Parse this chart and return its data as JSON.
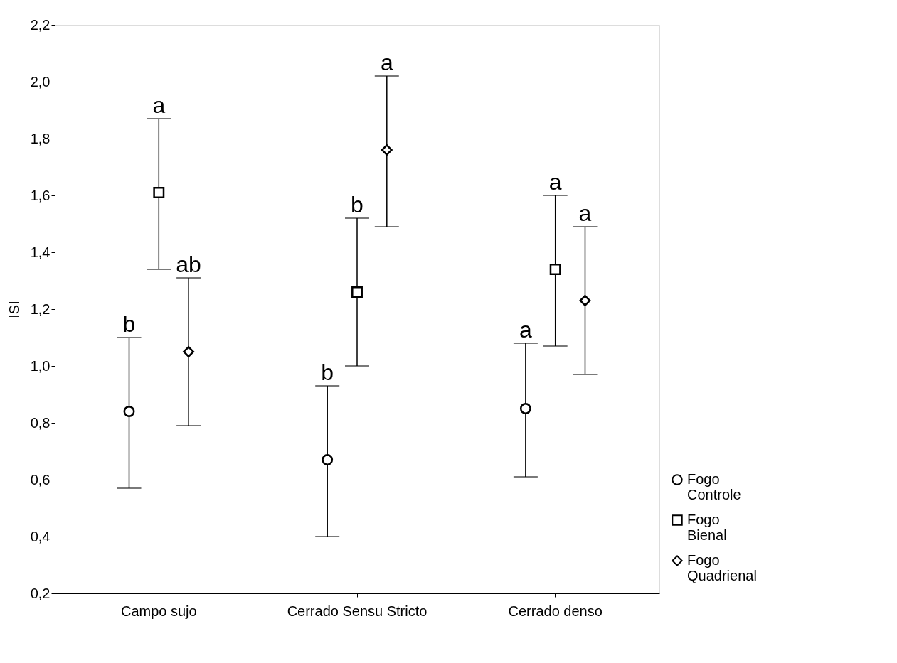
{
  "chart_data": {
    "type": "scatter",
    "ylabel": "ISI",
    "categories": [
      "Campo sujo",
      "Cerrado Sensu Stricto",
      "Cerrado denso"
    ],
    "series": [
      {
        "name": "Fogo Controle",
        "color": "#000000",
        "marker": "circle",
        "values": [
          0.84,
          0.67,
          0.85
        ],
        "errors": [
          [
            0.57,
            1.1
          ],
          [
            0.4,
            0.93
          ],
          [
            0.61,
            1.08
          ]
        ]
      },
      {
        "name": "Fogo Bienal",
        "color": "#000000",
        "marker": "square",
        "values": [
          1.61,
          1.26,
          1.34
        ],
        "errors": [
          [
            1.34,
            1.87
          ],
          [
            1.0,
            1.52
          ],
          [
            1.07,
            1.6
          ]
        ]
      },
      {
        "name": "Fogo Quadrienal",
        "color": "#000000",
        "marker": "diamond",
        "values": [
          1.05,
          1.76,
          1.23
        ],
        "errors": [
          [
            0.79,
            1.31
          ],
          [
            1.49,
            2.02
          ],
          [
            0.97,
            1.49
          ]
        ]
      }
    ],
    "annotations": [
      "b",
      "a",
      "ab",
      "b",
      "b",
      "a",
      "a",
      "a",
      "a"
    ],
    "ylim": [
      0.2,
      2.2
    ],
    "yticks": [
      {
        "value": 0.2,
        "label": "0,2"
      },
      {
        "value": 0.4,
        "label": "0,4"
      },
      {
        "value": 0.6,
        "label": "0,6"
      },
      {
        "value": 0.8,
        "label": "0,8"
      },
      {
        "value": 1.0,
        "label": "1,0"
      },
      {
        "value": 1.2,
        "label": "1,2"
      },
      {
        "value": 1.4,
        "label": "1,4"
      },
      {
        "value": 1.6,
        "label": "1,6"
      },
      {
        "value": 1.8,
        "label": "1,8"
      },
      {
        "value": 2.0,
        "label": "2,0"
      },
      {
        "value": 2.2,
        "label": "2,2"
      }
    ],
    "grid": false,
    "legend": "bottom right"
  }
}
